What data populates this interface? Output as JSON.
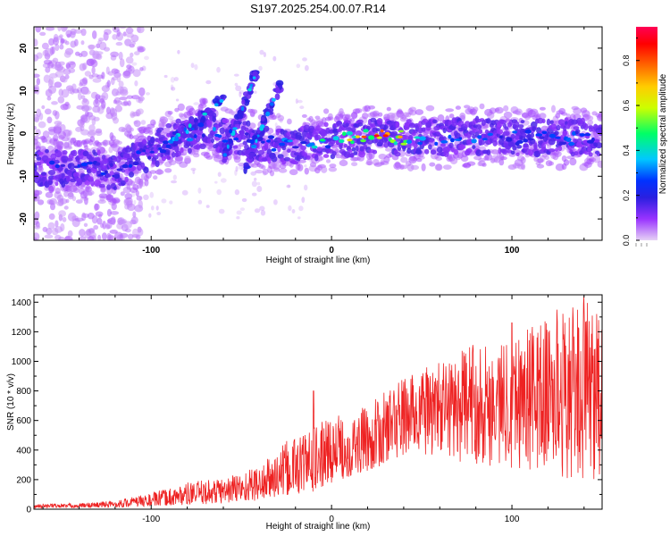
{
  "title": "S197.2025.254.00.07.R14",
  "chart_data": [
    {
      "type": "heatmap",
      "xlabel": "Height of straight line (km)",
      "ylabel": "Frequency (Hz)",
      "xlim": [
        -165,
        150
      ],
      "ylim": [
        -25,
        25
      ],
      "xticks": [
        -100,
        0,
        100
      ],
      "yticks": [
        -20,
        -10,
        0,
        10,
        20
      ],
      "colorbar": {
        "label": "Normalized spectral amplitude",
        "range": [
          0.0,
          0.95
        ],
        "ticks": [
          0.0,
          0.2,
          0.4,
          0.6,
          0.8
        ],
        "tick_labels": [
          "0.0",
          "0.2",
          "0.4",
          "0.6",
          "0.8"
        ],
        "colors": [
          "#e6d2f5",
          "#9933ff",
          "#2a1fe0",
          "#0033ff",
          "#00c8ff",
          "#00ff66",
          "#ccff00",
          "#ffcc00",
          "#ff6600",
          "#ff0000",
          "#ff0055"
        ]
      },
      "ridge": {
        "description_points": [
          {
            "x": -150,
            "y": -8,
            "v": 0.25
          },
          {
            "x": -135,
            "y": -8,
            "v": 0.3
          },
          {
            "x": -120,
            "y": -9,
            "v": 0.25
          },
          {
            "x": -100,
            "y": -4,
            "v": 0.3
          },
          {
            "x": -85,
            "y": -1,
            "v": 0.4
          },
          {
            "x": -70,
            "y": 1,
            "v": 0.35
          },
          {
            "x": -55,
            "y": -1,
            "v": 0.35
          },
          {
            "x": -40,
            "y": -2,
            "v": 0.3
          },
          {
            "x": -20,
            "y": -3,
            "v": 0.35
          },
          {
            "x": 0,
            "y": -1.5,
            "v": 0.45
          },
          {
            "x": 15,
            "y": -1,
            "v": 0.7
          },
          {
            "x": 25,
            "y": -0.5,
            "v": 0.9
          },
          {
            "x": 40,
            "y": -1,
            "v": 0.6
          },
          {
            "x": 60,
            "y": -1,
            "v": 0.4
          },
          {
            "x": 80,
            "y": -0.5,
            "v": 0.35
          },
          {
            "x": 100,
            "y": -1,
            "v": 0.3
          },
          {
            "x": 120,
            "y": -1,
            "v": 0.3
          },
          {
            "x": 140,
            "y": -1,
            "v": 0.3
          }
        ],
        "branches": [
          {
            "x": [
              -90,
              -60
            ],
            "y": [
              -2,
              8
            ]
          },
          {
            "x": [
              -60,
              -42
            ],
            "y": [
              -6,
              14
            ]
          },
          {
            "x": [
              -48,
              -28
            ],
            "y": [
              -8,
              12
            ]
          }
        ]
      }
    },
    {
      "type": "line",
      "xlabel": "Height of straight line (km)",
      "ylabel": "SNR (10 * v/v)",
      "xlim": [
        -165,
        150
      ],
      "ylim": [
        0,
        1450
      ],
      "xticks": [
        -100,
        0,
        100
      ],
      "yticks": [
        0,
        200,
        400,
        600,
        800,
        1000,
        1200,
        1400
      ],
      "color": "#ee2222",
      "envelope": {
        "x": [
          -165,
          -140,
          -120,
          -100,
          -80,
          -60,
          -40,
          -30,
          -20,
          -10,
          0,
          10,
          20,
          30,
          40,
          50,
          60,
          70,
          80,
          90,
          100,
          110,
          120,
          130,
          140,
          150
        ],
        "low": [
          10,
          10,
          12,
          20,
          30,
          40,
          60,
          80,
          100,
          120,
          180,
          220,
          260,
          300,
          330,
          350,
          350,
          320,
          300,
          280,
          260,
          250,
          220,
          200,
          180,
          160
        ],
        "high": [
          35,
          40,
          60,
          110,
          180,
          220,
          300,
          400,
          520,
          560,
          640,
          650,
          700,
          800,
          900,
          950,
          1000,
          1050,
          1150,
          1100,
          1200,
          1250,
          1300,
          1350,
          1400,
          1400
        ]
      },
      "peaks": [
        {
          "x": -10,
          "y": 800
        },
        {
          "x": 100,
          "y": 1260
        },
        {
          "x": 125,
          "y": 1350
        },
        {
          "x": 140,
          "y": 1440
        },
        {
          "x": 147,
          "y": 1320
        }
      ]
    }
  ]
}
